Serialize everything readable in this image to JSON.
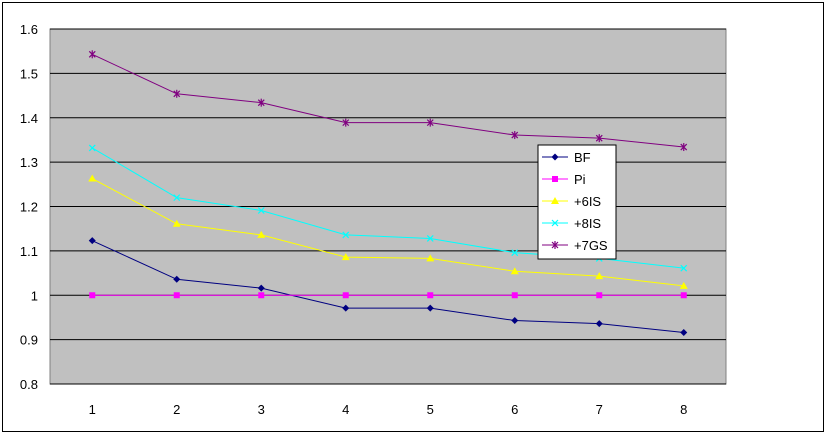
{
  "chart_data": {
    "type": "line",
    "categories": [
      "1",
      "2",
      "3",
      "4",
      "5",
      "6",
      "7",
      "8"
    ],
    "ylim": [
      0.8,
      1.6
    ],
    "yticks": [
      "0.8",
      "0.9",
      "1",
      "1.1",
      "1.2",
      "1.3",
      "1.4",
      "1.5",
      "1.6"
    ],
    "grid": true,
    "legend_position": "right",
    "plot_background": "#c0c0c0",
    "series": [
      {
        "name": "BF",
        "color": "#000080",
        "marker": "diamond",
        "values": [
          1.123,
          1.036,
          1.016,
          0.971,
          0.971,
          0.943,
          0.936,
          0.916
        ]
      },
      {
        "name": "Pi",
        "color": "#ff00ff",
        "marker": "square",
        "values": [
          1.0,
          1.0,
          1.0,
          1.0,
          1.0,
          1.0,
          1.0,
          1.0
        ]
      },
      {
        "name": "+6IS",
        "color": "#ffff00",
        "marker": "triangle",
        "values": [
          1.263,
          1.161,
          1.136,
          1.086,
          1.083,
          1.054,
          1.043,
          1.021
        ]
      },
      {
        "name": "+8IS",
        "color": "#00ffff",
        "marker": "x",
        "values": [
          1.332,
          1.22,
          1.191,
          1.136,
          1.128,
          1.096,
          1.083,
          1.061
        ]
      },
      {
        "name": "+7GS",
        "color": "#800080",
        "marker": "star",
        "values": [
          1.543,
          1.454,
          1.434,
          1.389,
          1.389,
          1.361,
          1.354,
          1.334
        ]
      }
    ]
  }
}
